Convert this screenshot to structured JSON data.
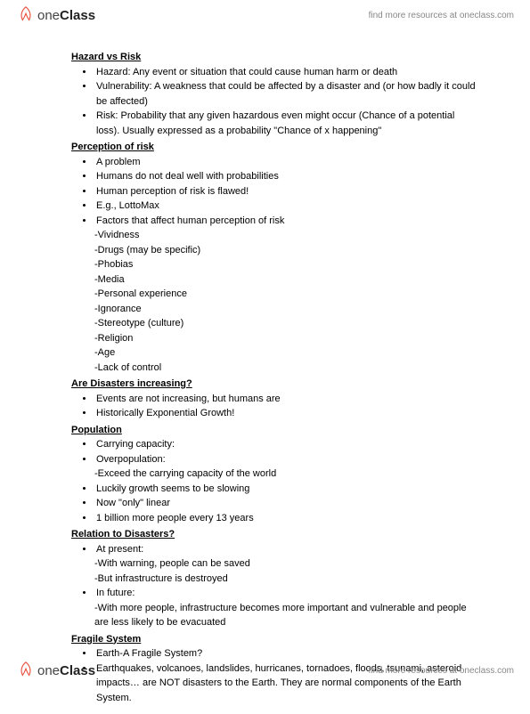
{
  "brand": {
    "name_part1": "one",
    "name_part2": "Class",
    "tagline": "find more resources at oneclass.com"
  },
  "sections": [
    {
      "heading": "Hazard vs Risk",
      "items": [
        {
          "type": "bullet",
          "text": "Hazard: Any event or situation that could cause human harm or death"
        },
        {
          "type": "bullet",
          "text": "Vulnerability: A weakness that could be affected by a disaster and (or how badly it could be affected)"
        },
        {
          "type": "bullet",
          "text": "Risk: Probability that any given hazardous even might occur (Chance of a potential loss). Usually expressed as a probability \"Chance of x happening\""
        }
      ]
    },
    {
      "heading": "Perception of risk",
      "items": [
        {
          "type": "bullet",
          "text": "A problem"
        },
        {
          "type": "bullet",
          "text": "Humans do not deal well with probabilities"
        },
        {
          "type": "bullet",
          "text": "Human perception of risk is flawed!"
        },
        {
          "type": "bullet",
          "text": "E.g., LottoMax"
        },
        {
          "type": "bullet",
          "text": "Factors that affect human perception of risk"
        },
        {
          "type": "dash",
          "text": "-Vividness"
        },
        {
          "type": "dash",
          "text": "-Drugs (may be specific)"
        },
        {
          "type": "dash",
          "text": "-Phobias"
        },
        {
          "type": "dash",
          "text": "-Media"
        },
        {
          "type": "dash",
          "text": "-Personal experience"
        },
        {
          "type": "dash",
          "text": "-Ignorance"
        },
        {
          "type": "dash",
          "text": "-Stereotype (culture)"
        },
        {
          "type": "dash",
          "text": "-Religion"
        },
        {
          "type": "dash",
          "text": "-Age"
        },
        {
          "type": "dash",
          "text": "-Lack of control"
        }
      ]
    },
    {
      "heading": "Are Disasters increasing?",
      "items": [
        {
          "type": "bullet",
          "text": "Events are not increasing, but humans are"
        },
        {
          "type": "bullet",
          "text": "Historically Exponential Growth!"
        }
      ]
    },
    {
      "heading": "Population",
      "items": [
        {
          "type": "bullet",
          "text": "Carrying capacity:"
        },
        {
          "type": "bullet",
          "text": "Overpopulation:"
        },
        {
          "type": "dash",
          "text": "-Exceed the carrying capacity of the world"
        },
        {
          "type": "bullet",
          "text": "Luckily growth seems to be slowing"
        },
        {
          "type": "bullet",
          "text": "Now \"only\" linear"
        },
        {
          "type": "bullet",
          "text": "1 billion more people every 13 years"
        }
      ]
    },
    {
      "heading": "Relation to Disasters?",
      "items": [
        {
          "type": "bullet",
          "text": "At present:"
        },
        {
          "type": "dash",
          "text": "-With warning, people can be saved"
        },
        {
          "type": "dash",
          "text": "-But infrastructure is destroyed"
        },
        {
          "type": "bullet",
          "text": "In future:"
        },
        {
          "type": "dash",
          "text": "-With more people, infrastructure becomes more important and vulnerable and people are less likely to be evacuated"
        }
      ]
    },
    {
      "heading": "Fragile System",
      "items": [
        {
          "type": "bullet",
          "text": "Earth-A Fragile System?"
        },
        {
          "type": "bullet",
          "text": "Earthquakes, volcanoes, landslides, hurricanes, tornadoes, floods, tsunami, asteroid impacts… are NOT disasters to the Earth. They are normal components of the Earth System."
        }
      ]
    }
  ]
}
